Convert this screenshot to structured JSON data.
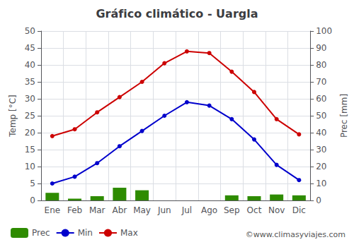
{
  "chart_data": {
    "type": "bar",
    "title": "Gráfico climático - Uargla",
    "categories": [
      "Ene",
      "Feb",
      "Mar",
      "Abr",
      "May",
      "Jun",
      "Jul",
      "Ago",
      "Sep",
      "Oct",
      "Nov",
      "Dic"
    ],
    "series": [
      {
        "name": "Prec",
        "type": "bar",
        "axis": "y2",
        "color": "#2e8b00",
        "values": [
          4.5,
          1,
          2.5,
          7.5,
          6,
          0,
          0,
          0,
          3,
          2.5,
          3.5,
          3
        ]
      },
      {
        "name": "Min",
        "type": "line",
        "marker": "circle",
        "color": "#0000cc",
        "values": [
          5,
          7,
          11,
          16,
          20.5,
          25,
          29,
          28,
          24,
          18,
          10.5,
          6
        ]
      },
      {
        "name": "Max",
        "type": "line",
        "marker": "circle",
        "color": "#cc0000",
        "values": [
          19,
          21,
          26,
          30.5,
          35,
          40.5,
          44,
          43.5,
          38,
          32,
          24,
          19.5
        ]
      }
    ],
    "ylabel": "Temp [°C]",
    "y2label": "Prec [mm]",
    "ylim": [
      0,
      50
    ],
    "yticks": [
      0,
      5,
      10,
      15,
      20,
      25,
      30,
      35,
      40,
      45,
      50
    ],
    "y2lim": [
      0,
      100
    ],
    "y2ticks": [
      0,
      10,
      20,
      30,
      40,
      50,
      60,
      70,
      80,
      90,
      100
    ],
    "grid": true,
    "legend": "bottom",
    "annotations": [
      "©www.climasyviajes.com"
    ]
  }
}
